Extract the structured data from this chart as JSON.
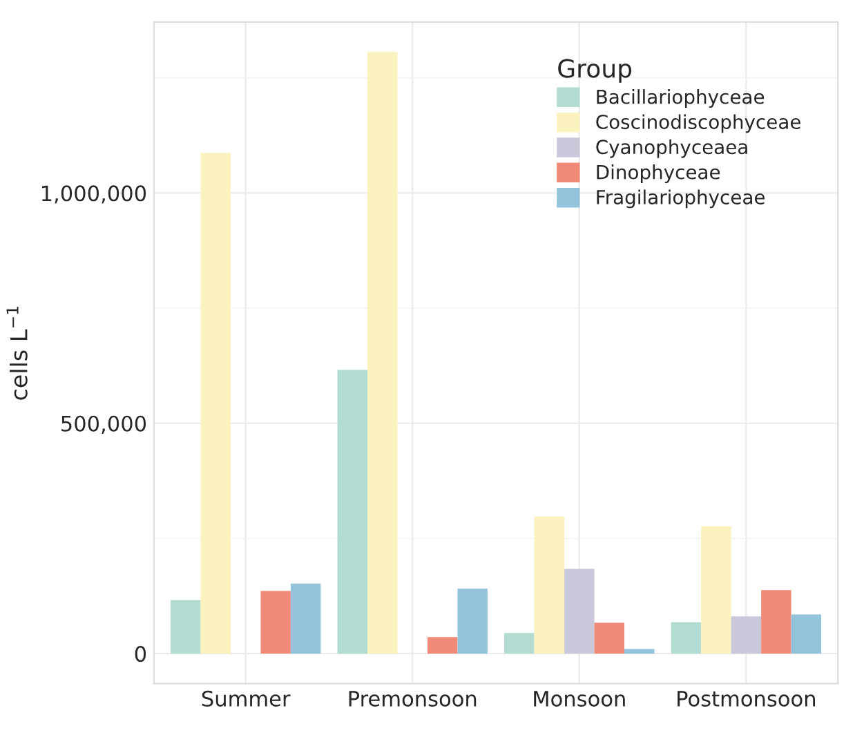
{
  "chart_data": {
    "type": "bar",
    "ylabel": "cells L$^{−1}$",
    "legend_title": "Group",
    "categories": [
      "Summer",
      "Premonsoon",
      "Monsoon",
      "Postmonsoon"
    ],
    "series": [
      {
        "name": "Bacillariophyceae",
        "color": "#b2dcd2",
        "values": [
          116000,
          616000,
          45000,
          68000
        ]
      },
      {
        "name": "Coscinodiscophyceae",
        "color": "#fbf2c0",
        "values": [
          1087000,
          1306000,
          298000,
          276000
        ]
      },
      {
        "name": "Cyanophyceaea",
        "color": "#cac9dc",
        "values": [
          null,
          null,
          184000,
          81000
        ]
      },
      {
        "name": "Dinophyceae",
        "color": "#f28a78",
        "values": [
          136000,
          36000,
          67000,
          138000
        ]
      },
      {
        "name": "Fragilariophyceae",
        "color": "#93c4dc",
        "values": [
          152000,
          141000,
          10000,
          85000
        ]
      }
    ],
    "ylim": [
      -65000,
      1371000
    ],
    "yticks": [
      0,
      {
        "value": 500000,
        "label": "500,000"
      },
      {
        "value": 1000000,
        "label": "1,000,000"
      }
    ],
    "grid": true,
    "legend": "top right"
  }
}
